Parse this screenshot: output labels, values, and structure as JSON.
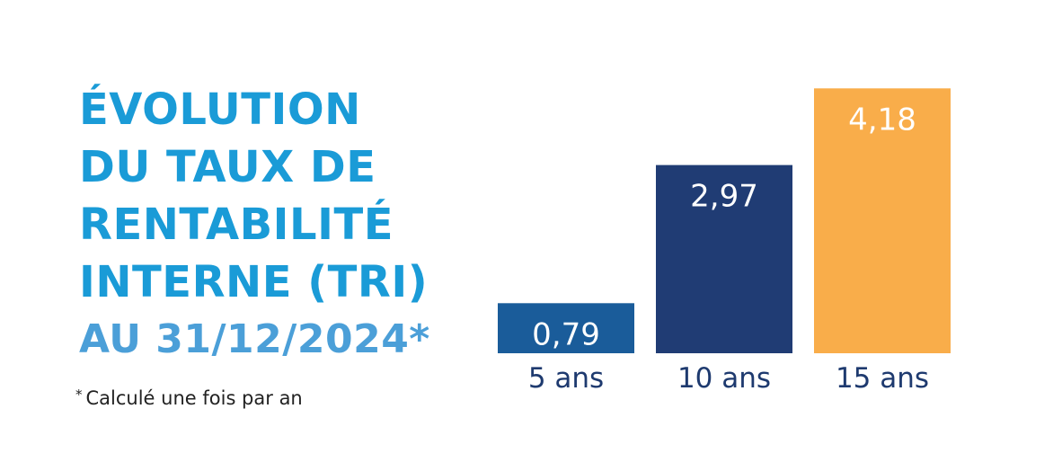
{
  "title": {
    "lines": [
      "ÉVOLUTION",
      "DU TAUX DE",
      "RENTABILITÉ",
      "INTERNE (TRI)"
    ],
    "date_line": "AU 31/12/2024*"
  },
  "footnote": {
    "star": "*",
    "text": "Calculé une fois par an"
  },
  "colors": {
    "title": "#1a9bd7",
    "date": "#4b9fd8",
    "bar_5": "#1a5c9a",
    "bar_10": "#203c74",
    "bar_15": "#f9ad4a",
    "category_text": "#1e3a6f"
  },
  "chart_data": {
    "type": "bar",
    "categories": [
      "5 ans",
      "10 ans",
      "15 ans"
    ],
    "values": [
      0.79,
      2.97,
      4.18
    ],
    "value_labels": [
      "0,79",
      "2,97",
      "4,18"
    ],
    "bar_colors": [
      "#1a5c9a",
      "#203c74",
      "#f9ad4a"
    ],
    "title": "ÉVOLUTION DU TAUX DE RENTABILITÉ INTERNE (TRI) AU 31/12/2024*",
    "xlabel": "",
    "ylabel": "",
    "grid": false,
    "legend": "none"
  }
}
